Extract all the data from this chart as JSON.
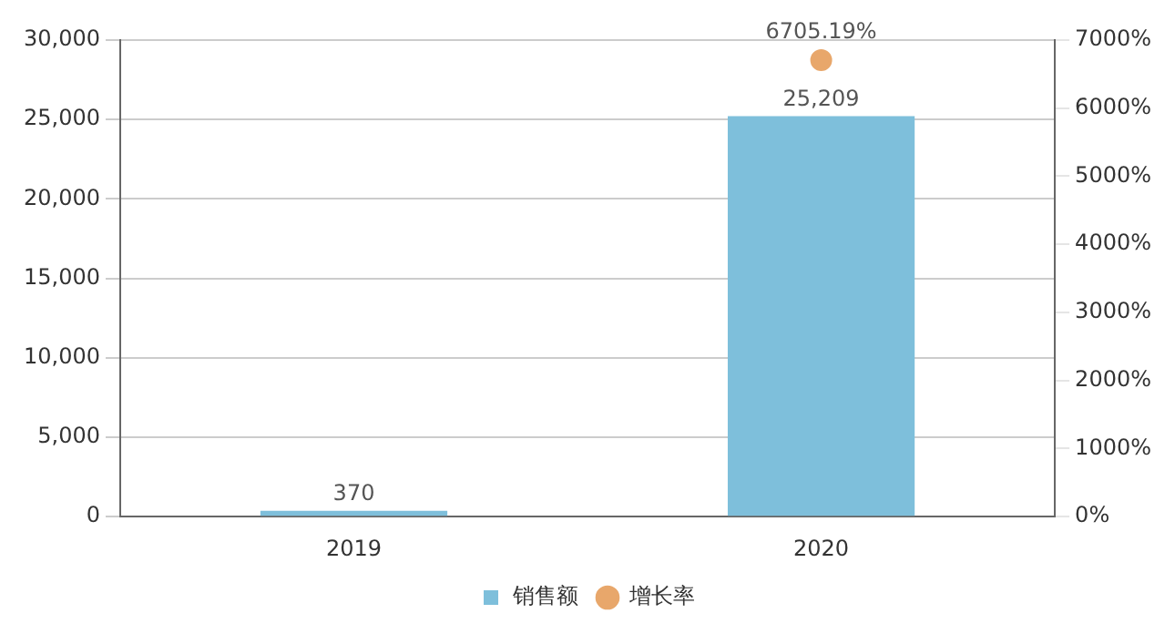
{
  "chart_data": {
    "type": "bar",
    "categories": [
      "2019",
      "2020"
    ],
    "series": [
      {
        "name": "销售额",
        "color": "#7ebfdb",
        "values": [
          370,
          25209
        ],
        "value_labels": [
          "370",
          "25,209"
        ]
      },
      {
        "name": "增长率",
        "type": "line",
        "axis": "y2",
        "color": "#e8a76b",
        "marker": "circle",
        "values": [
          null,
          6705.19
        ],
        "value_labels": [
          null,
          "6705.19%"
        ]
      }
    ],
    "ylim": [
      0,
      30000
    ],
    "yticks": [
      0,
      {
        "value": 5000,
        "label": "5,000"
      },
      {
        "value": 10000,
        "label": "10,000"
      },
      {
        "value": 15000,
        "label": "15,000"
      },
      {
        "value": 20000,
        "label": "20,000"
      },
      {
        "value": 25000,
        "label": "25,000"
      },
      {
        "value": 30000,
        "label": "30,000"
      }
    ],
    "y2lim": [
      0,
      7000
    ],
    "y2ticks": [
      {
        "value": 0,
        "label": "0%"
      },
      {
        "value": 1000,
        "label": "1000%"
      },
      {
        "value": 2000,
        "label": "2000%"
      },
      {
        "value": 3000,
        "label": "3000%"
      },
      {
        "value": 4000,
        "label": "4000%"
      },
      {
        "value": 5000,
        "label": "5000%"
      },
      {
        "value": 6000,
        "label": "6000%"
      },
      {
        "value": 7000,
        "label": "7000%"
      }
    ],
    "grid": "y",
    "legend": "bottom"
  }
}
